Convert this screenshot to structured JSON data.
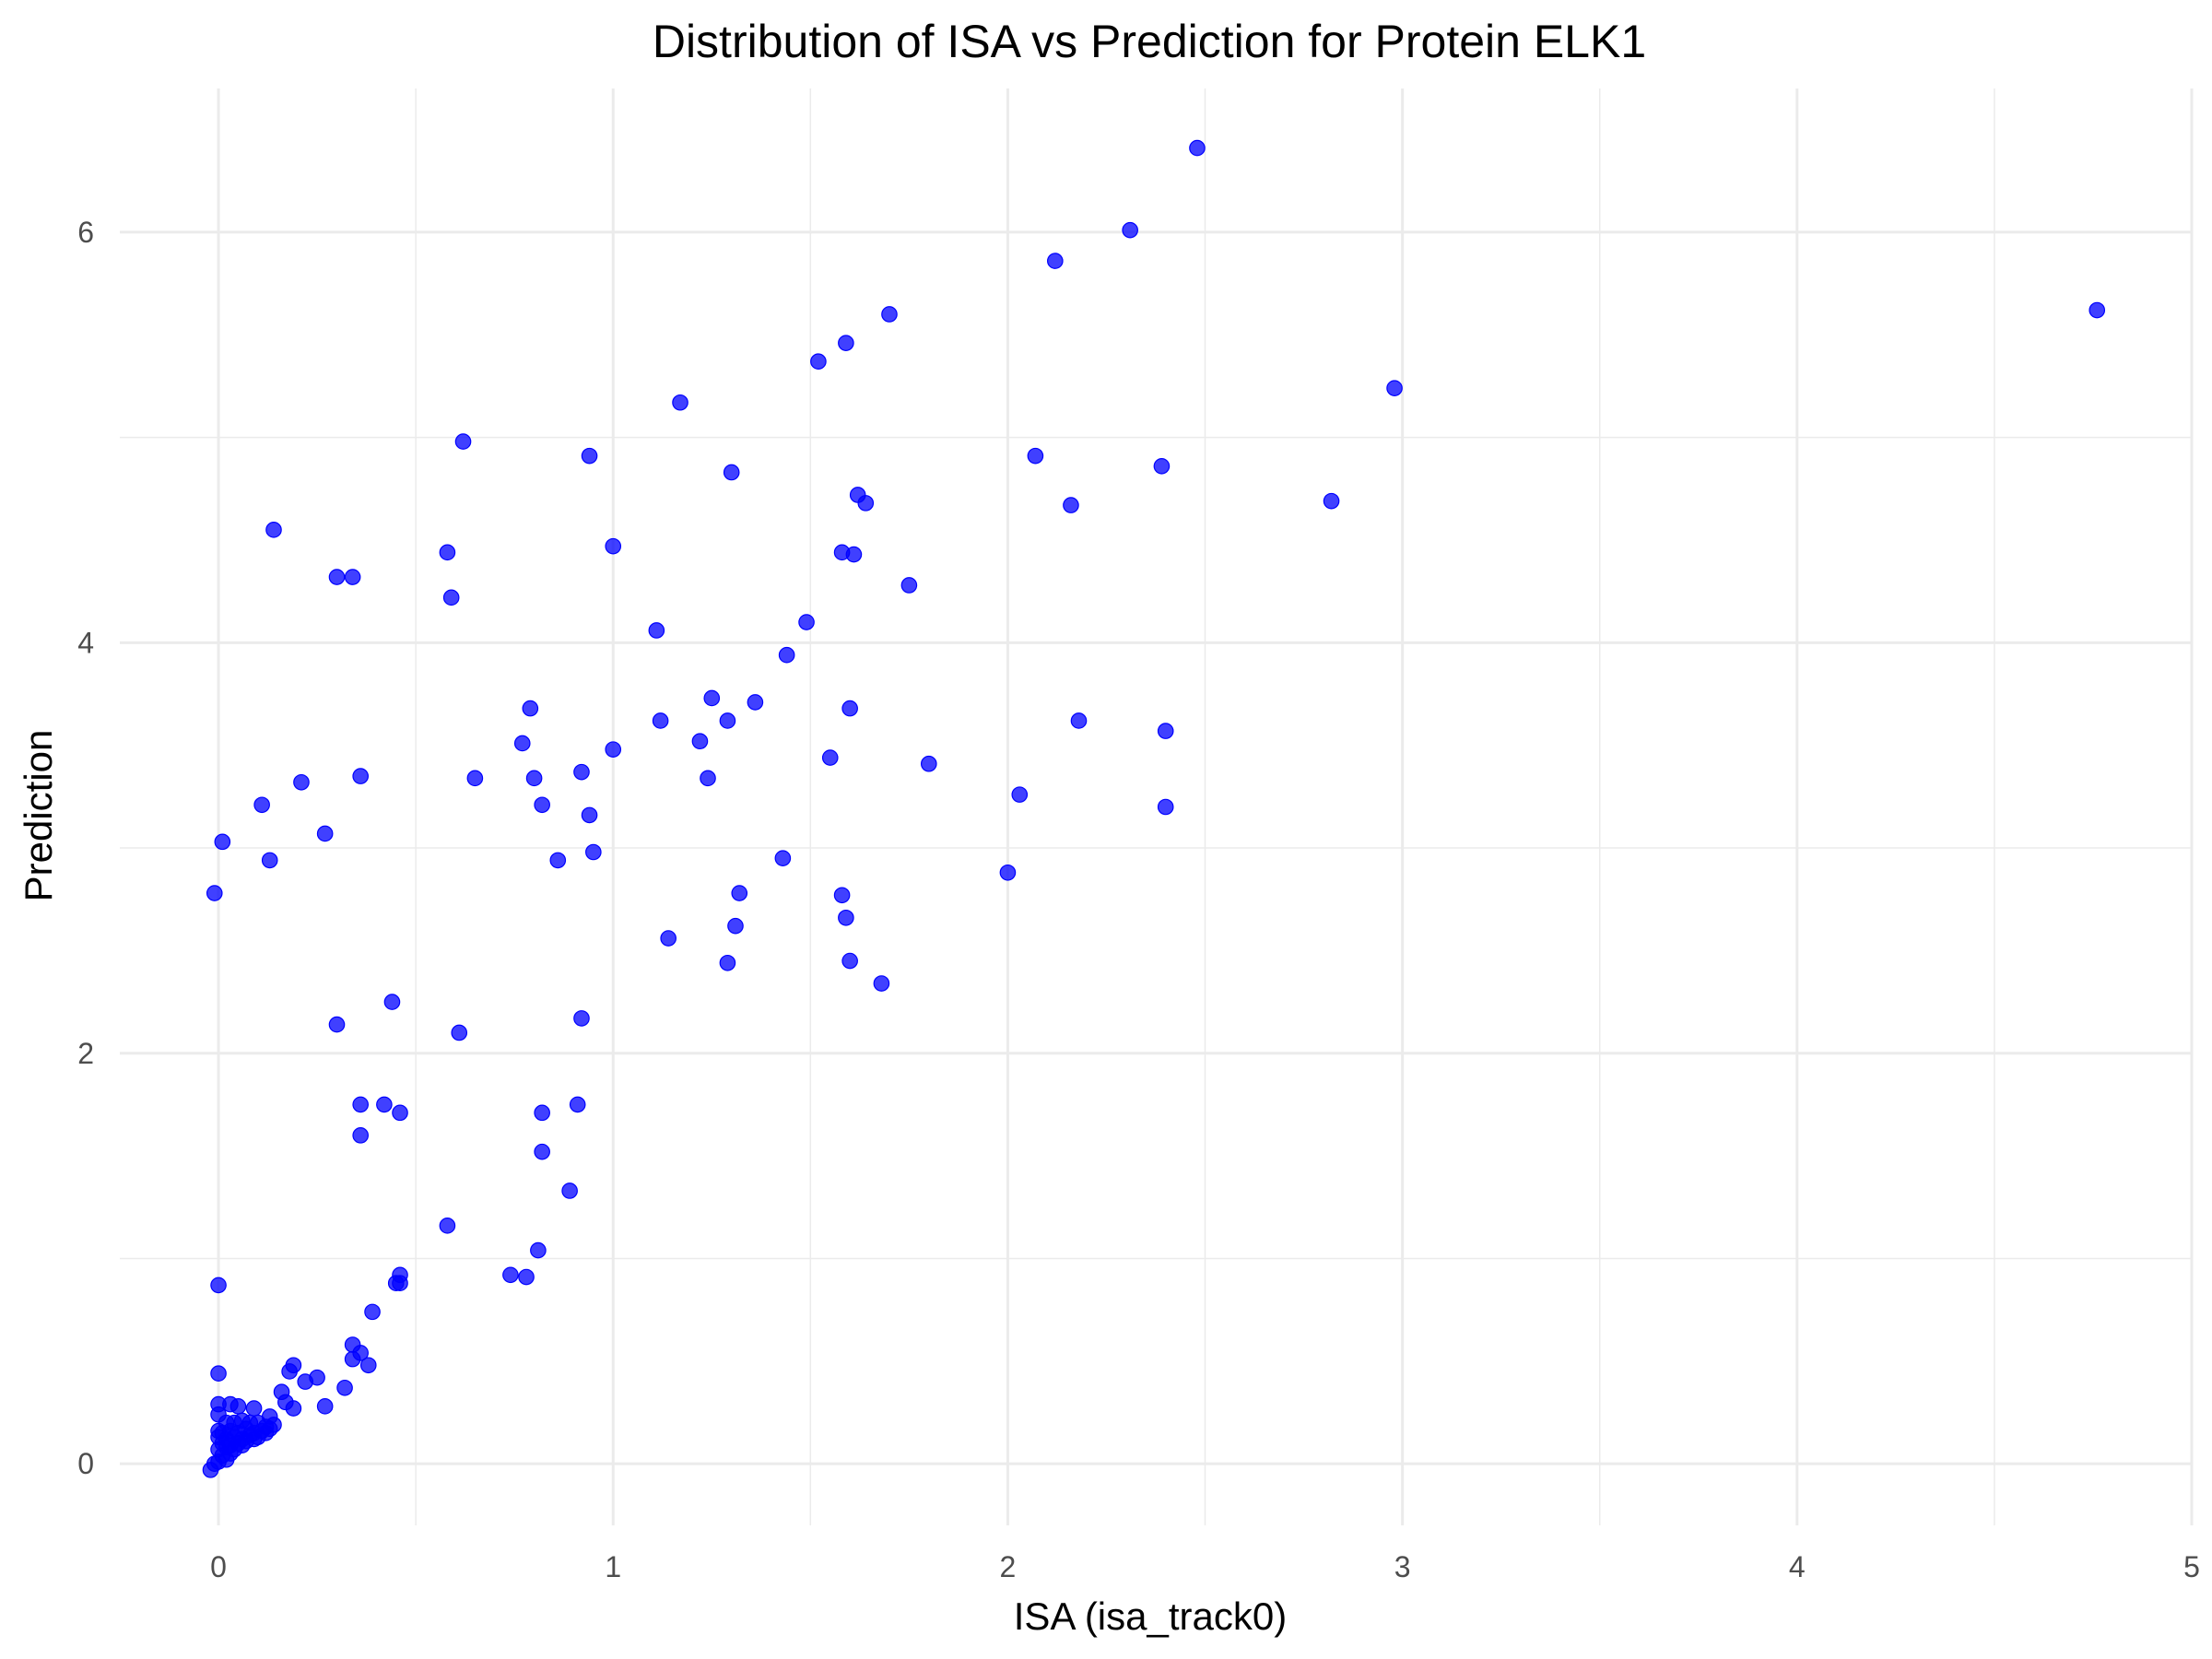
{
  "chart_data": {
    "type": "scatter",
    "title": "Distribution of ISA vs Prediction for Protein ELK1",
    "xlabel": "ISA (isa_track0)",
    "ylabel": "Prediction",
    "xlim": [
      -0.25,
      5
    ],
    "ylim": [
      -0.3,
      6.7
    ],
    "x_ticks": [
      0,
      1,
      2,
      3,
      4,
      5
    ],
    "x_tick_labels": [
      "0",
      "1",
      "2",
      "3",
      "4",
      "5"
    ],
    "y_ticks": [
      0,
      2,
      4,
      6
    ],
    "y_tick_labels": [
      "0",
      "2",
      "4",
      "6"
    ],
    "grid": true,
    "legend": "none",
    "point_color": "#0000ff",
    "point_opacity": 0.75,
    "points": [
      [
        2.48,
        6.41
      ],
      [
        2.31,
        6.01
      ],
      [
        2.12,
        5.86
      ],
      [
        1.7,
        5.6
      ],
      [
        4.76,
        5.62
      ],
      [
        1.59,
        5.46
      ],
      [
        1.52,
        5.37
      ],
      [
        1.17,
        5.17
      ],
      [
        2.98,
        5.24
      ],
      [
        0.62,
        4.98
      ],
      [
        0.94,
        4.91
      ],
      [
        2.07,
        4.91
      ],
      [
        2.39,
        4.86
      ],
      [
        1.3,
        4.83
      ],
      [
        1.62,
        4.72
      ],
      [
        1.64,
        4.68
      ],
      [
        2.16,
        4.67
      ],
      [
        2.82,
        4.69
      ],
      [
        0.14,
        4.55
      ],
      [
        1.0,
        4.47
      ],
      [
        0.58,
        4.44
      ],
      [
        1.58,
        4.44
      ],
      [
        1.61,
        4.43
      ],
      [
        0.3,
        4.32
      ],
      [
        0.34,
        4.32
      ],
      [
        1.75,
        4.28
      ],
      [
        0.59,
        4.22
      ],
      [
        1.49,
        4.1
      ],
      [
        1.11,
        4.06
      ],
      [
        1.44,
        3.94
      ],
      [
        0.79,
        3.68
      ],
      [
        1.25,
        3.73
      ],
      [
        1.36,
        3.71
      ],
      [
        1.6,
        3.68
      ],
      [
        1.12,
        3.62
      ],
      [
        1.29,
        3.62
      ],
      [
        2.18,
        3.62
      ],
      [
        2.4,
        3.57
      ],
      [
        0.77,
        3.51
      ],
      [
        1.22,
        3.52
      ],
      [
        1.0,
        3.48
      ],
      [
        1.55,
        3.44
      ],
      [
        1.8,
        3.41
      ],
      [
        0.92,
        3.37
      ],
      [
        0.36,
        3.35
      ],
      [
        0.65,
        3.34
      ],
      [
        0.8,
        3.34
      ],
      [
        1.24,
        3.34
      ],
      [
        0.21,
        3.32
      ],
      [
        2.03,
        3.26
      ],
      [
        0.82,
        3.21
      ],
      [
        0.11,
        3.21
      ],
      [
        2.4,
        3.2
      ],
      [
        0.94,
        3.16
      ],
      [
        0.27,
        3.07
      ],
      [
        0.01,
        3.03
      ],
      [
        0.95,
        2.98
      ],
      [
        0.13,
        2.94
      ],
      [
        0.86,
        2.94
      ],
      [
        1.43,
        2.95
      ],
      [
        2.0,
        2.88
      ],
      [
        -0.01,
        2.78
      ],
      [
        1.32,
        2.78
      ],
      [
        1.58,
        2.77
      ],
      [
        1.59,
        2.66
      ],
      [
        1.31,
        2.62
      ],
      [
        1.14,
        2.56
      ],
      [
        1.6,
        2.45
      ],
      [
        1.29,
        2.44
      ],
      [
        1.68,
        2.34
      ],
      [
        0.44,
        2.25
      ],
      [
        0.3,
        2.14
      ],
      [
        0.92,
        2.17
      ],
      [
        0.61,
        2.1
      ],
      [
        0.36,
        1.75
      ],
      [
        0.42,
        1.75
      ],
      [
        0.91,
        1.75
      ],
      [
        0.46,
        1.71
      ],
      [
        0.82,
        1.71
      ],
      [
        0.36,
        1.6
      ],
      [
        0.82,
        1.52
      ],
      [
        0.89,
        1.33
      ],
      [
        0.58,
        1.16
      ],
      [
        0.81,
        1.04
      ],
      [
        0.74,
        0.92
      ],
      [
        0.78,
        0.91
      ],
      [
        0.46,
        0.92
      ],
      [
        0.45,
        0.88
      ],
      [
        0.46,
        0.88
      ],
      [
        0.0,
        0.87
      ],
      [
        0.39,
        0.74
      ],
      [
        0.34,
        0.58
      ],
      [
        0.36,
        0.54
      ],
      [
        0.34,
        0.51
      ],
      [
        0.38,
        0.48
      ],
      [
        0.19,
        0.48
      ],
      [
        0.18,
        0.45
      ],
      [
        0.0,
        0.44
      ],
      [
        0.25,
        0.42
      ],
      [
        0.22,
        0.4
      ],
      [
        0.32,
        0.37
      ],
      [
        0.16,
        0.35
      ],
      [
        0.17,
        0.3
      ],
      [
        0.19,
        0.27
      ],
      [
        0.27,
        0.28
      ],
      [
        0.0,
        0.29
      ],
      [
        0.03,
        0.29
      ],
      [
        0.05,
        0.28
      ],
      [
        0.09,
        0.27
      ],
      [
        0.0,
        0.24
      ],
      [
        0.13,
        0.23
      ],
      [
        0.14,
        0.19
      ],
      [
        0.02,
        0.2
      ],
      [
        0.04,
        0.2
      ],
      [
        0.06,
        0.21
      ],
      [
        0.08,
        0.2
      ],
      [
        0.1,
        0.2
      ],
      [
        0.12,
        0.18
      ],
      [
        0.0,
        0.16
      ],
      [
        0.01,
        0.15
      ],
      [
        0.03,
        0.16
      ],
      [
        0.05,
        0.15
      ],
      [
        0.07,
        0.17
      ],
      [
        0.09,
        0.15
      ],
      [
        0.11,
        0.16
      ],
      [
        0.13,
        0.17
      ],
      [
        0.0,
        0.13
      ],
      [
        0.02,
        0.12
      ],
      [
        0.04,
        0.13
      ],
      [
        0.06,
        0.12
      ],
      [
        0.08,
        0.14
      ],
      [
        0.1,
        0.13
      ],
      [
        0.12,
        0.15
      ],
      [
        0.01,
        0.1
      ],
      [
        0.03,
        0.09
      ],
      [
        0.05,
        0.1
      ],
      [
        0.07,
        0.11
      ],
      [
        0.09,
        0.12
      ],
      [
        0.0,
        0.07
      ],
      [
        0.02,
        0.08
      ],
      [
        0.04,
        0.07
      ],
      [
        0.06,
        0.09
      ],
      [
        0.03,
        0.05
      ],
      [
        0.01,
        0.04
      ],
      [
        0.02,
        0.02
      ],
      [
        0.0,
        0.01
      ],
      [
        -0.01,
        0.0
      ],
      [
        -0.02,
        -0.03
      ]
    ]
  }
}
